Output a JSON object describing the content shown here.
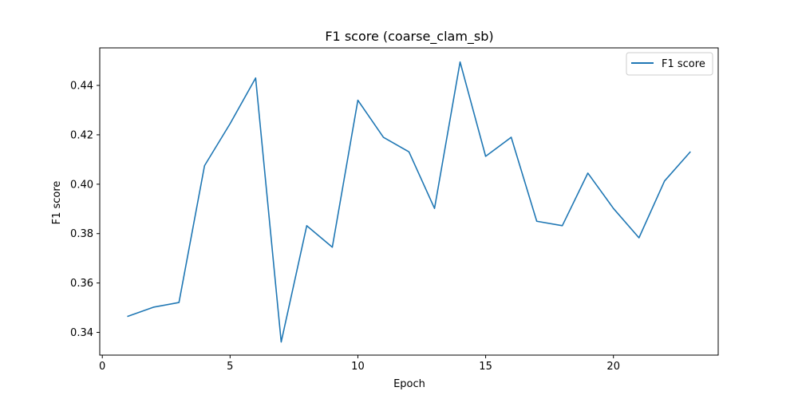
{
  "chart_data": {
    "type": "line",
    "title": "F1 score (coarse_clam_sb)",
    "xlabel": "Epoch",
    "ylabel": "F1 score",
    "xlim": [
      -0.1,
      24.1
    ],
    "ylim": [
      0.3308,
      0.4552
    ],
    "xticks": [
      0,
      5,
      10,
      15,
      20
    ],
    "yticks": [
      0.34,
      0.36,
      0.38,
      0.4,
      0.42,
      0.44
    ],
    "grid": false,
    "legend": "upper right",
    "series": [
      {
        "name": "F1 score",
        "color": "#1f77b4",
        "x": [
          1,
          2,
          3,
          4,
          5,
          6,
          7,
          8,
          9,
          10,
          11,
          12,
          13,
          14,
          15,
          16,
          17,
          18,
          19,
          20,
          21,
          22,
          23
        ],
        "y": [
          0.3465,
          0.3502,
          0.3521,
          0.4075,
          0.4245,
          0.443,
          0.3361,
          0.3832,
          0.3745,
          0.434,
          0.419,
          0.4131,
          0.3902,
          0.4495,
          0.4113,
          0.419,
          0.385,
          0.3832,
          0.4045,
          0.3902,
          0.3783,
          0.4013,
          0.413
        ]
      }
    ]
  }
}
